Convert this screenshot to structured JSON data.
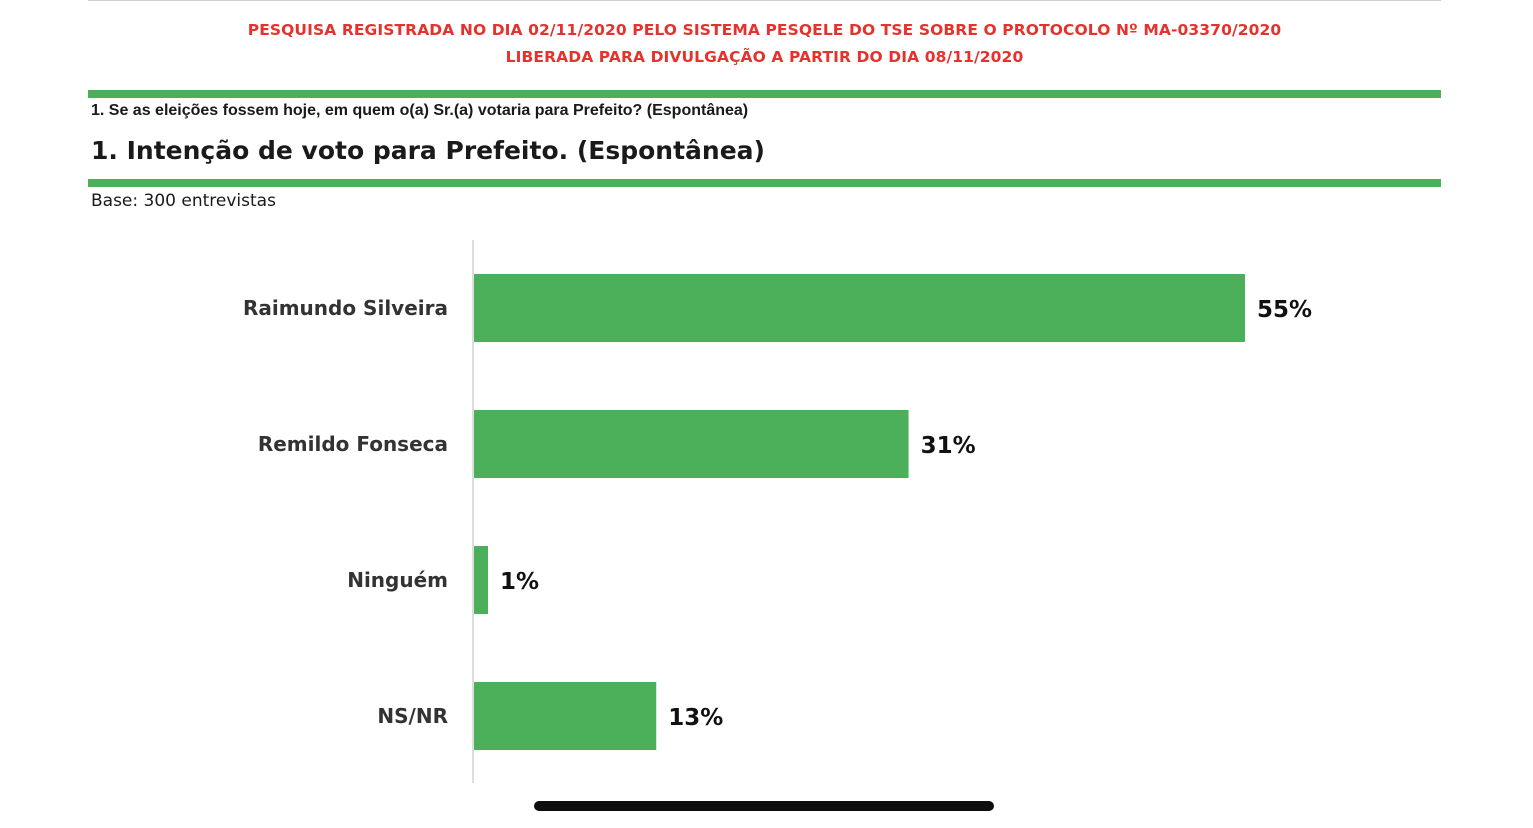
{
  "notice": {
    "line1": "PESQUISA REGISTRADA NO DIA 02/11/2020 PELO SISTEMA PESQELE DO TSE SOBRE O PROTOCOLO Nº MA-03370/2020",
    "line2": "LIBERADA PARA DIVULGAÇÃO A PARTIR DO DIA 08/11/2020"
  },
  "question": "1. Se as eleições fossem hoje, em quem o(a) Sr.(a) votaria para Prefeito? (Espontânea)",
  "base": "Base: 300 entrevistas",
  "colors": {
    "accent_green": "#4caf5a",
    "notice_red": "#e5322d"
  },
  "chart_data": {
    "type": "bar",
    "orientation": "horizontal",
    "title": "1. Intenção de voto para Prefeito. (Espontânea)",
    "categories": [
      "Raimundo Silveira",
      "Remildo Fonseca",
      "Ninguém",
      "NS/NR"
    ],
    "values": [
      55,
      31,
      1,
      13
    ],
    "value_labels": [
      "55%",
      "31%",
      "1%",
      "13%"
    ],
    "unit": "%",
    "xlim": [
      0,
      70
    ],
    "grid": false,
    "legend": "none"
  }
}
